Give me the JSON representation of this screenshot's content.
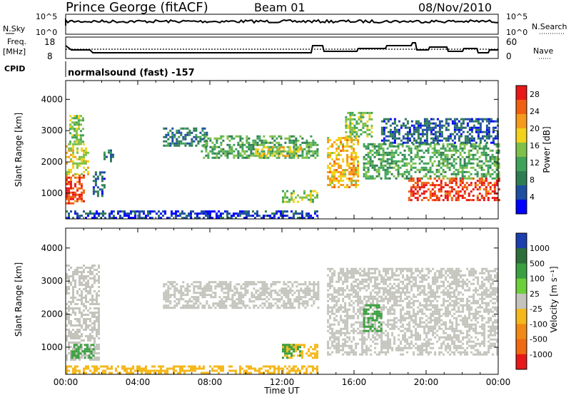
{
  "header": {
    "station": "Prince George (fitACF)",
    "beam": "Beam 01",
    "date": "08/Nov/2010"
  },
  "summary_panels": {
    "nsky_label": "N.Sky",
    "nsky_ticks": [
      "10^5",
      "10^0"
    ],
    "nsearch_label": "N.Search",
    "nsearch_ticks": [
      "10^5",
      "10^0"
    ],
    "freq_label": "Freq.",
    "freq_unit": "[MHz]",
    "freq_ticks": [
      "18",
      "8"
    ],
    "nave_label": "Nave",
    "nave_ticks": [
      "60",
      "0"
    ],
    "cpid_label": "CPID",
    "cpid_text": "normalsound (fast) -157"
  },
  "colors": {
    "power_scale": [
      "#0000ff",
      "#1e4ea0",
      "#2e7d52",
      "#3fa35a",
      "#7ec04a",
      "#f2d21a",
      "#f59a1a",
      "#f06010",
      "#e81818"
    ],
    "velocity_scale": [
      "#1c3fb0",
      "#2e6e3a",
      "#3aa040",
      "#6cd03a",
      "#c4c4bd",
      "#f5b81c",
      "#f08a14",
      "#f06a12",
      "#e81818"
    ]
  },
  "chart_data": [
    {
      "type": "heatmap",
      "panel": "power",
      "xlabel": "Time UT",
      "ylabel": "Slant Range [km]",
      "x_ticks": [
        "00:00",
        "04:00",
        "08:00",
        "12:00",
        "16:00",
        "20:00",
        "00:00"
      ],
      "y_ticks": [
        "1000",
        "2000",
        "3000",
        "4000"
      ],
      "xlim": [
        "00:00",
        "24:00"
      ],
      "ylim": [
        180,
        4600
      ],
      "colorbar_label": "Power [dB]",
      "colorbar_ticks": [
        "4",
        "8",
        "12",
        "16",
        "20",
        "24",
        "28"
      ],
      "colorbar_range": [
        0,
        30
      ],
      "regions": [
        {
          "t0": 0.0,
          "t1": 1.0,
          "r0": 650,
          "r1": 1600,
          "value": 26
        },
        {
          "t0": 0.0,
          "t1": 1.3,
          "r0": 1600,
          "r1": 2600,
          "value": 18
        },
        {
          "t0": 0.2,
          "t1": 1.0,
          "r0": 2600,
          "r1": 3500,
          "value": 14
        },
        {
          "t0": 1.5,
          "t1": 2.1,
          "r0": 900,
          "r1": 1700,
          "value": 6
        },
        {
          "t0": 2.1,
          "t1": 2.6,
          "r0": 2000,
          "r1": 2400,
          "value": 8
        },
        {
          "t0": 5.4,
          "t1": 7.8,
          "r0": 2500,
          "r1": 3100,
          "value": 8
        },
        {
          "t0": 7.5,
          "t1": 14.0,
          "r0": 2150,
          "r1": 2850,
          "value": 12
        },
        {
          "t0": 10.5,
          "t1": 13.0,
          "r0": 2200,
          "r1": 2500,
          "value": 18
        },
        {
          "t0": 12.0,
          "t1": 14.0,
          "r0": 700,
          "r1": 1100,
          "value": 14
        },
        {
          "t0": 14.5,
          "t1": 16.2,
          "r0": 1200,
          "r1": 2800,
          "value": 20
        },
        {
          "t0": 15.5,
          "t1": 17.0,
          "r0": 2800,
          "r1": 3600,
          "value": 14
        },
        {
          "t0": 16.5,
          "t1": 24.0,
          "r0": 1500,
          "r1": 2600,
          "value": 12
        },
        {
          "t0": 17.5,
          "t1": 24.0,
          "r0": 2600,
          "r1": 3400,
          "value": 6
        },
        {
          "t0": 19.0,
          "t1": 24.0,
          "r0": 800,
          "r1": 1500,
          "value": 27
        },
        {
          "t0": 0.0,
          "t1": 14.0,
          "r0": 200,
          "r1": 450,
          "value": 4
        }
      ]
    },
    {
      "type": "heatmap",
      "panel": "velocity",
      "xlabel": "Time UT",
      "ylabel": "Slant Range [km]",
      "x_ticks": [
        "00:00",
        "04:00",
        "08:00",
        "12:00",
        "16:00",
        "20:00",
        "00:00"
      ],
      "y_ticks": [
        "1000",
        "2000",
        "3000",
        "4000"
      ],
      "xlim": [
        "00:00",
        "24:00"
      ],
      "ylim": [
        180,
        4600
      ],
      "colorbar_label": "Velocity [m s⁻¹]",
      "colorbar_ticks": [
        "1000",
        "500",
        "100",
        "25",
        "-25",
        "-100",
        "-500",
        "-1000"
      ],
      "regions": [
        {
          "t0": 0.0,
          "t1": 1.8,
          "r0": 650,
          "r1": 3500,
          "value": 0
        },
        {
          "t0": 0.3,
          "t1": 1.5,
          "r0": 650,
          "r1": 1100,
          "value": 100
        },
        {
          "t0": 5.4,
          "t1": 14.0,
          "r0": 2200,
          "r1": 3000,
          "value": 0
        },
        {
          "t0": 12.0,
          "t1": 14.0,
          "r0": 700,
          "r1": 1100,
          "value": -100
        },
        {
          "t0": 12.0,
          "t1": 13.0,
          "r0": 700,
          "r1": 1100,
          "value": 100
        },
        {
          "t0": 14.5,
          "t1": 24.0,
          "r0": 800,
          "r1": 3400,
          "value": 0
        },
        {
          "t0": 16.5,
          "t1": 17.5,
          "r0": 1500,
          "r1": 2300,
          "value": 100
        },
        {
          "t0": 0.0,
          "t1": 14.0,
          "r0": 200,
          "r1": 450,
          "value": -100
        }
      ]
    }
  ]
}
